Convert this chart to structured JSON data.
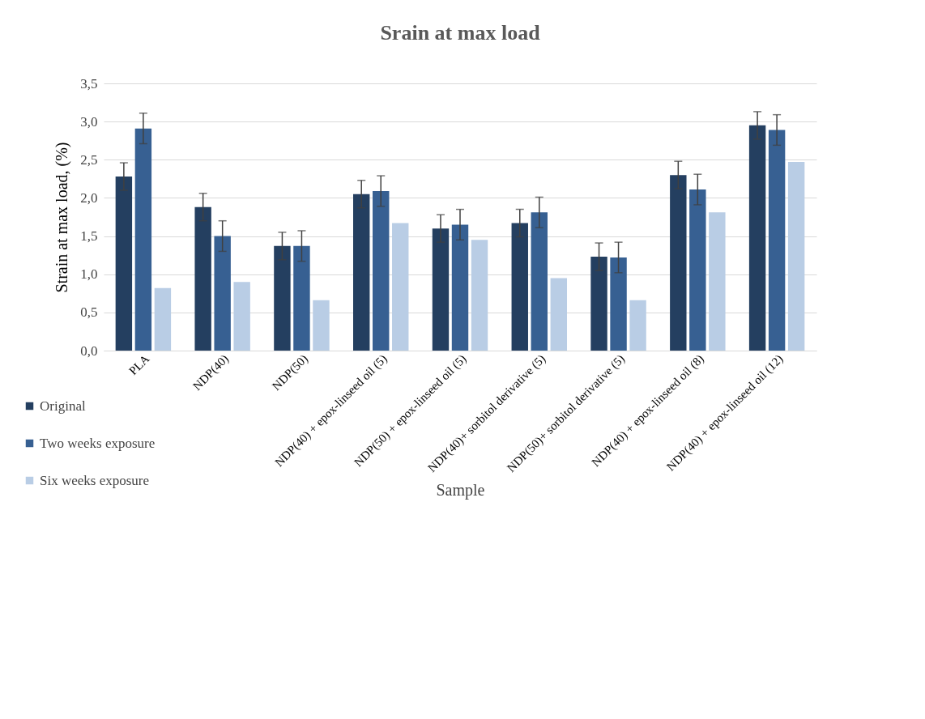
{
  "chart_data": {
    "type": "bar",
    "title": "Srain at max load",
    "xlabel": "Sample",
    "ylabel": "Strain at max load, (%)",
    "categories": [
      "PLA",
      "NDP(40)",
      "NDP(50)",
      "NDP(40) + epox-linseed oil (5)",
      "NDP(50) + epox-linseed oil (5)",
      "NDP(40)+ sorbitol derivative (5)",
      "NDP(50)+ sorbitol derivative (5)",
      "NDP(40) + epox-linseed oil (8)",
      "NDP(40) + epox-linseed oil (12)"
    ],
    "series": [
      {
        "name": "Original",
        "color": "#243f60",
        "values": [
          2.28,
          1.88,
          1.37,
          2.05,
          1.6,
          1.67,
          1.23,
          2.3,
          2.95
        ],
        "errors": [
          0.18,
          0.18,
          0.18,
          0.18,
          0.18,
          0.18,
          0.18,
          0.18,
          0.18
        ]
      },
      {
        "name": "Two weeks exposure",
        "color": "#376092",
        "values": [
          2.91,
          1.5,
          1.37,
          2.09,
          1.65,
          1.81,
          1.22,
          2.11,
          2.89
        ],
        "errors": [
          0.2,
          0.2,
          0.2,
          0.2,
          0.2,
          0.2,
          0.2,
          0.2,
          0.2
        ]
      },
      {
        "name": "Six weeks exposure",
        "color": "#b9cde5",
        "values": [
          0.82,
          0.9,
          0.66,
          1.67,
          1.45,
          0.95,
          0.66,
          1.81,
          2.47
        ]
      }
    ],
    "ylim": [
      0,
      3.5
    ],
    "yticks": [
      {
        "value": 0,
        "label": "0,0"
      },
      {
        "value": 0.5,
        "label": "0,5"
      },
      {
        "value": 1,
        "label": "1,0"
      },
      {
        "value": 1.5,
        "label": "1,5"
      },
      {
        "value": 2,
        "label": "2,0"
      },
      {
        "value": 2.5,
        "label": "2,5"
      },
      {
        "value": 3,
        "label": "3,0"
      },
      {
        "value": 3.5,
        "label": "3,5"
      }
    ],
    "grid": "y",
    "legend": "bottom left"
  }
}
